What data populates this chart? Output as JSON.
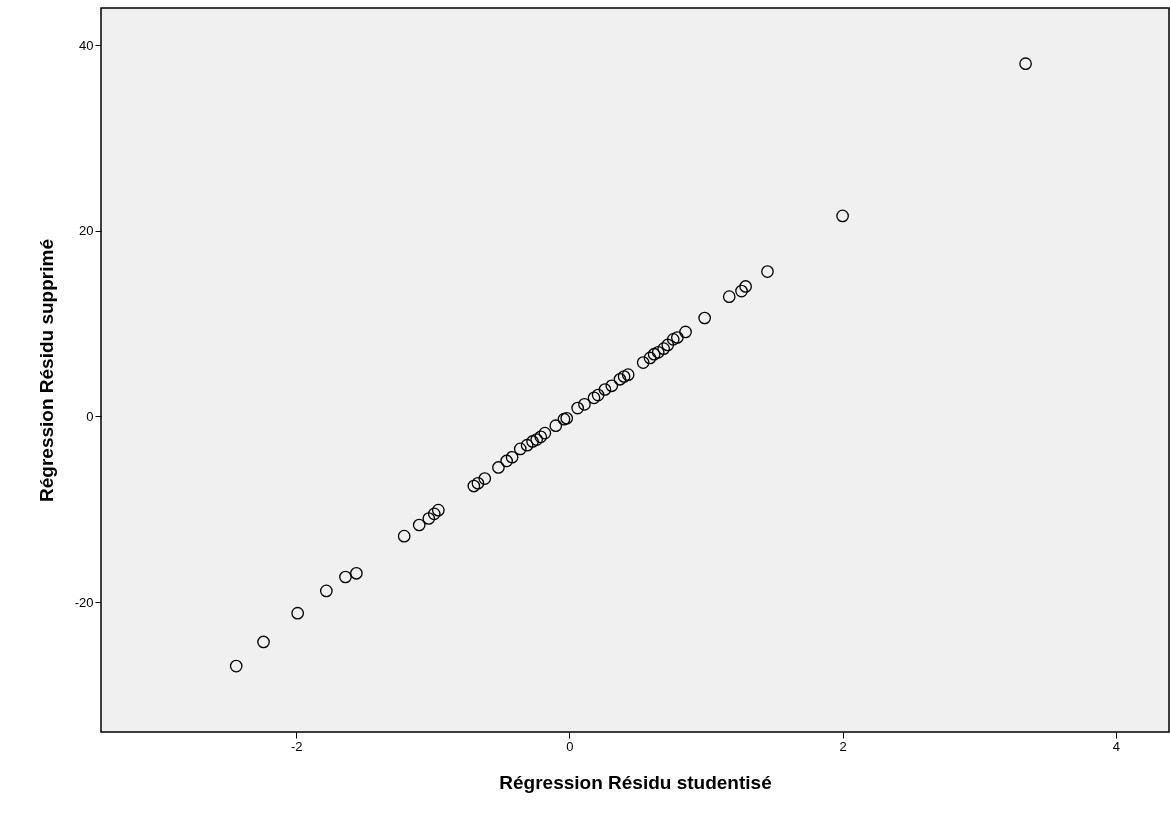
{
  "chart_data": {
    "type": "scatter",
    "xlabel": "Régression Résidu studentisé",
    "ylabel": "Régression Résidu supprimé",
    "marker": "circle",
    "grid": false,
    "xlim": [
      -3.43,
      4.39
    ],
    "xticks": [
      -2,
      0,
      2,
      4
    ],
    "ylim": [
      -34,
      44
    ],
    "yticks": [
      -20,
      0,
      20,
      40
    ],
    "series": [
      {
        "color": "#000000",
        "x": [
          -2.44,
          -2.24,
          -1.99,
          -1.78,
          -1.64,
          -1.56,
          -1.21,
          -1.1,
          -1.03,
          -0.99,
          -0.96,
          -0.7,
          -0.67,
          -0.62,
          -0.52,
          -0.46,
          -0.42,
          -0.36,
          -0.31,
          -0.27,
          -0.24,
          -0.21,
          -0.18,
          -0.1,
          -0.04,
          -0.02,
          0.06,
          0.11,
          0.18,
          0.21,
          0.26,
          0.31,
          0.37,
          0.4,
          0.43,
          0.54,
          0.59,
          0.62,
          0.65,
          0.69,
          0.72,
          0.76,
          0.79,
          0.85,
          0.99,
          1.17,
          1.26,
          1.29,
          1.45,
          2.0,
          3.34
        ],
        "values": [
          -26.9,
          -24.3,
          -21.2,
          -18.8,
          -17.3,
          -16.9,
          -12.9,
          -11.7,
          -11.0,
          -10.5,
          -10.1,
          -7.5,
          -7.2,
          -6.7,
          -5.5,
          -4.8,
          -4.4,
          -3.5,
          -3.1,
          -2.7,
          -2.5,
          -2.2,
          -1.8,
          -1.0,
          -0.3,
          -0.2,
          0.9,
          1.3,
          2.0,
          2.3,
          2.9,
          3.3,
          4.0,
          4.3,
          4.5,
          5.8,
          6.3,
          6.7,
          6.9,
          7.3,
          7.7,
          8.3,
          8.5,
          9.1,
          10.6,
          12.9,
          13.5,
          14.0,
          15.6,
          21.6,
          38.0
        ]
      }
    ]
  }
}
